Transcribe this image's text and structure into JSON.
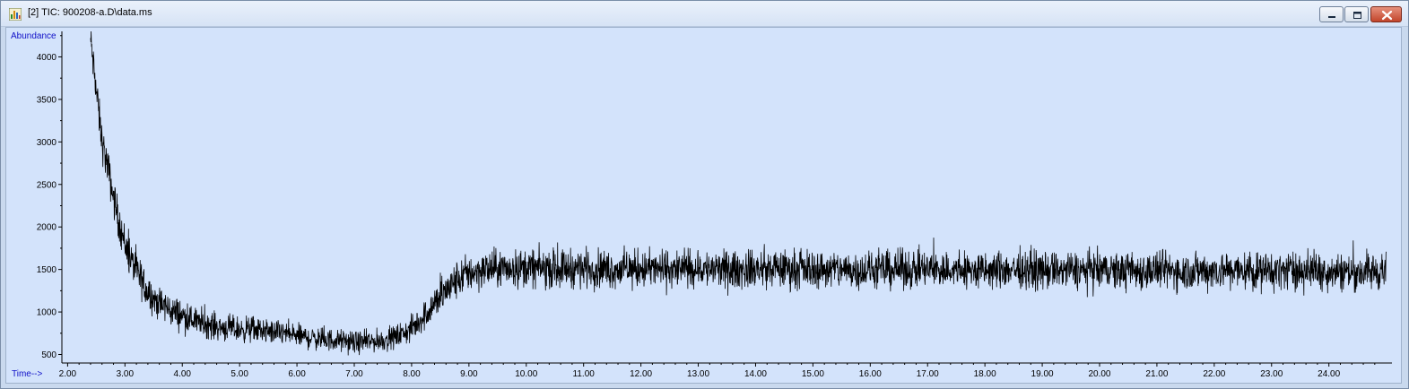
{
  "window": {
    "title": "[2] TIC: 900208-a.D\\data.ms",
    "app_icon": "chromatogram-app-icon",
    "buttons": [
      "minimize-icon",
      "maximize-icon",
      "close-icon"
    ]
  },
  "chart_data": {
    "type": "line",
    "title": "TIC: 900208-a.D\\data.ms",
    "ylabel": "Abundance",
    "xlabel": "Time-->",
    "xlim": [
      1.9,
      25.1
    ],
    "ylim": [
      400,
      4300
    ],
    "x_ticks": [
      "2.00",
      "3.00",
      "4.00",
      "5.00",
      "6.00",
      "7.00",
      "8.00",
      "9.00",
      "10.00",
      "11.00",
      "12.00",
      "13.00",
      "14.00",
      "15.00",
      "16.00",
      "17.00",
      "18.00",
      "19.00",
      "20.00",
      "21.00",
      "22.00",
      "23.00",
      "24.00"
    ],
    "y_ticks": [
      "500",
      "1000",
      "1500",
      "2000",
      "2500",
      "3000",
      "3500",
      "4000"
    ],
    "grid": false,
    "line_color": "#000000",
    "background_color": "#d3e3fb",
    "series": [
      {
        "x": [
          2.4,
          2.5,
          2.6,
          2.7,
          2.8,
          2.9,
          3.0,
          3.1,
          3.2,
          3.3,
          3.4,
          3.5,
          3.6,
          3.7,
          3.8,
          3.9,
          4.0,
          4.2,
          4.4,
          4.6,
          4.8,
          5.0,
          5.2,
          5.4,
          5.6,
          5.8,
          6.0,
          6.2,
          6.4,
          6.6,
          6.8,
          7.0,
          7.2,
          7.4,
          7.6,
          7.8,
          8.0,
          8.2,
          8.4,
          8.6,
          8.8,
          9.0,
          9.3,
          9.6,
          10.0,
          10.5,
          11.0,
          11.5,
          12.0,
          12.5,
          13.0,
          13.5,
          14.0,
          14.5,
          15.0,
          15.5,
          16.0,
          16.5,
          17.0,
          17.5,
          18.0,
          18.5,
          19.0,
          19.5,
          20.0,
          20.5,
          21.0,
          21.5,
          22.0,
          22.5,
          23.0,
          23.5,
          24.0,
          24.5,
          25.0
        ],
        "values": [
          4200,
          3600,
          3000,
          2700,
          2350,
          2050,
          1800,
          1620,
          1480,
          1350,
          1250,
          1160,
          1100,
          1060,
          1020,
          990,
          960,
          900,
          860,
          830,
          810,
          790,
          800,
          780,
          760,
          750,
          720,
          700,
          680,
          670,
          660,
          640,
          650,
          660,
          680,
          730,
          800,
          940,
          1100,
          1250,
          1380,
          1460,
          1500,
          1510,
          1520,
          1510,
          1520,
          1500,
          1510,
          1500,
          1510,
          1490,
          1500,
          1510,
          1500,
          1500,
          1490,
          1500,
          1500,
          1490,
          1480,
          1500,
          1490,
          1490,
          1490,
          1480,
          1490,
          1480,
          1490,
          1480,
          1480,
          1490,
          1480,
          1470,
          1480
        ]
      }
    ]
  }
}
